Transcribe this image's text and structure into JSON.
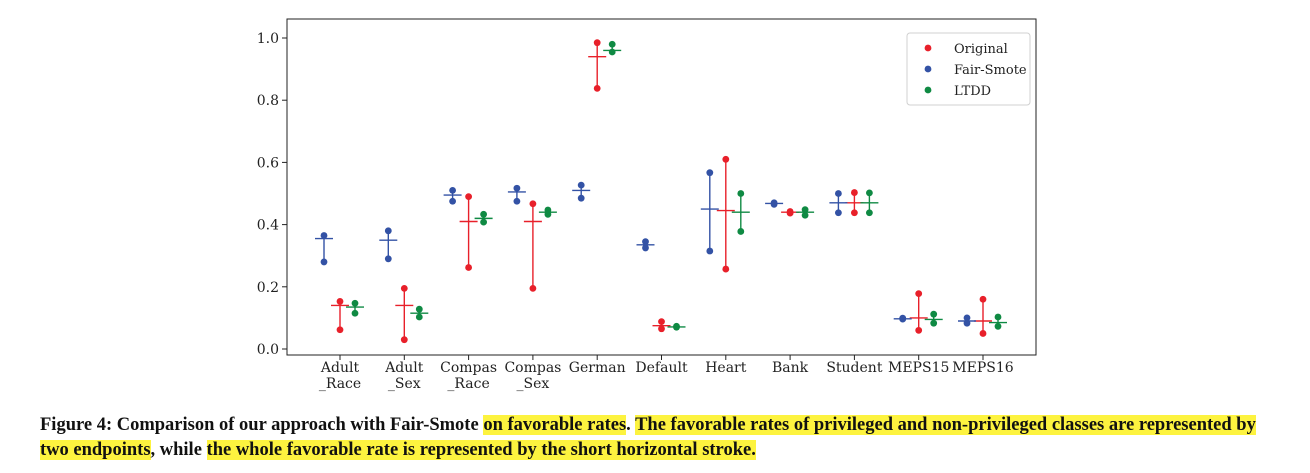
{
  "chart_data": {
    "type": "scatter",
    "ylim": [
      0.0,
      1.0
    ],
    "yticks": [
      "0.0",
      "0.2",
      "0.4",
      "0.6",
      "0.8",
      "1.0"
    ],
    "categories": [
      "Adult\n_Race",
      "Adult\n_Sex",
      "Compas\n_Race",
      "Compas\n_Sex",
      "German",
      "Default",
      "Heart",
      "Bank",
      "Student",
      "MEPS15",
      "MEPS16"
    ],
    "legend_position": "top-right",
    "grid": false,
    "series": [
      {
        "name": "Original",
        "color": "#e8202a",
        "points": [
          {
            "category": "Adult\n_Race",
            "low": 0.062,
            "high": 0.153,
            "overall": 0.14
          },
          {
            "category": "Adult\n_Sex",
            "low": 0.03,
            "high": 0.195,
            "overall": 0.14
          },
          {
            "category": "Compas\n_Race",
            "low": 0.262,
            "high": 0.49,
            "overall": 0.41
          },
          {
            "category": "Compas\n_Sex",
            "low": 0.195,
            "high": 0.467,
            "overall": 0.41
          },
          {
            "category": "German",
            "low": 0.838,
            "high": 0.985,
            "overall": 0.94
          },
          {
            "category": "Default",
            "low": 0.065,
            "high": 0.088,
            "overall": 0.075
          },
          {
            "category": "Heart",
            "low": 0.257,
            "high": 0.61,
            "overall": 0.445
          },
          {
            "category": "Bank",
            "low": 0.437,
            "high": 0.442,
            "overall": 0.44
          },
          {
            "category": "Student",
            "low": 0.438,
            "high": 0.503,
            "overall": 0.47
          },
          {
            "category": "MEPS15",
            "low": 0.06,
            "high": 0.178,
            "overall": 0.1
          },
          {
            "category": "MEPS16",
            "low": 0.05,
            "high": 0.16,
            "overall": 0.09
          }
        ]
      },
      {
        "name": "Fair-Smote",
        "color": "#3352a5",
        "points": [
          {
            "category": "Adult\n_Race",
            "low": 0.28,
            "high": 0.365,
            "overall": 0.355
          },
          {
            "category": "Adult\n_Sex",
            "low": 0.29,
            "high": 0.38,
            "overall": 0.35
          },
          {
            "category": "Compas\n_Race",
            "low": 0.475,
            "high": 0.51,
            "overall": 0.495
          },
          {
            "category": "Compas\n_Sex",
            "low": 0.475,
            "high": 0.517,
            "overall": 0.505
          },
          {
            "category": "German",
            "low": 0.485,
            "high": 0.527,
            "overall": 0.51
          },
          {
            "category": "Default",
            "low": 0.325,
            "high": 0.345,
            "overall": 0.335
          },
          {
            "category": "Heart",
            "low": 0.315,
            "high": 0.567,
            "overall": 0.45
          },
          {
            "category": "Bank",
            "low": 0.465,
            "high": 0.47,
            "overall": 0.468
          },
          {
            "category": "Student",
            "low": 0.438,
            "high": 0.5,
            "overall": 0.47
          },
          {
            "category": "MEPS15",
            "low": 0.096,
            "high": 0.099,
            "overall": 0.097
          },
          {
            "category": "MEPS16",
            "low": 0.083,
            "high": 0.1,
            "overall": 0.09
          }
        ]
      },
      {
        "name": "LTDD",
        "color": "#0f8a43",
        "points": [
          {
            "category": "Adult\n_Race",
            "low": 0.115,
            "high": 0.147,
            "overall": 0.135
          },
          {
            "category": "Adult\n_Sex",
            "low": 0.103,
            "high": 0.128,
            "overall": 0.115
          },
          {
            "category": "Compas\n_Race",
            "low": 0.408,
            "high": 0.433,
            "overall": 0.42
          },
          {
            "category": "Compas\n_Sex",
            "low": 0.433,
            "high": 0.447,
            "overall": 0.44
          },
          {
            "category": "German",
            "low": 0.955,
            "high": 0.98,
            "overall": 0.96
          },
          {
            "category": "Default",
            "low": 0.07,
            "high": 0.073,
            "overall": 0.071
          },
          {
            "category": "Heart",
            "low": 0.378,
            "high": 0.5,
            "overall": 0.44
          },
          {
            "category": "Bank",
            "low": 0.43,
            "high": 0.448,
            "overall": 0.44
          },
          {
            "category": "Student",
            "low": 0.438,
            "high": 0.502,
            "overall": 0.47
          },
          {
            "category": "MEPS15",
            "low": 0.083,
            "high": 0.112,
            "overall": 0.095
          },
          {
            "category": "MEPS16",
            "low": 0.073,
            "high": 0.103,
            "overall": 0.085
          }
        ]
      }
    ]
  },
  "caption": {
    "prefix": "Figure 4: Comparison of our approach with Fair-Smote ",
    "hl1": "on favorable rates",
    "mid1": ". ",
    "hl2": "The favorable rates of privileged and non-privileged classes are represented by two endpoints",
    "mid2": ", while ",
    "hl3": "the whole favorable rate is represented by the short horizontal stroke."
  }
}
